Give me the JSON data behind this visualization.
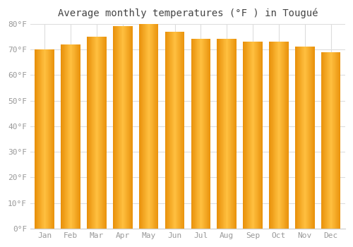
{
  "title": "Average monthly temperatures (°F ) in Tougué",
  "months": [
    "Jan",
    "Feb",
    "Mar",
    "Apr",
    "May",
    "Jun",
    "Jul",
    "Aug",
    "Sep",
    "Oct",
    "Nov",
    "Dec"
  ],
  "values": [
    70,
    72,
    75,
    79,
    80,
    77,
    74,
    74,
    73,
    73,
    71,
    69
  ],
  "bar_color_left": "#E8900A",
  "bar_color_center": "#FFBB30",
  "bar_color_right": "#E8900A",
  "ylim": [
    0,
    80
  ],
  "yticks": [
    0,
    10,
    20,
    30,
    40,
    50,
    60,
    70,
    80
  ],
  "ytick_labels": [
    "0°F",
    "10°F",
    "20°F",
    "30°F",
    "40°F",
    "50°F",
    "60°F",
    "70°F",
    "80°F"
  ],
  "background_color": "#ffffff",
  "plot_bg_color": "#ffffff",
  "grid_color": "#dddddd",
  "title_fontsize": 10,
  "tick_fontsize": 8,
  "tick_color": "#999999",
  "bar_width": 0.75
}
